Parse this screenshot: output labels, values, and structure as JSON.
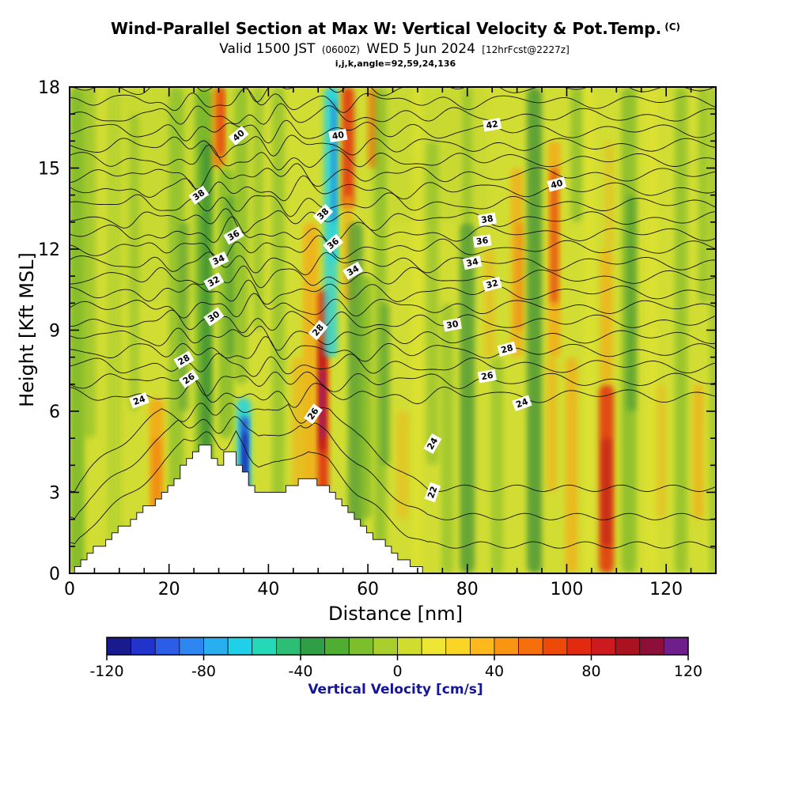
{
  "header": {
    "title_main": "Wind-Parallel Section at Max W: Vertical Velocity & Pot.Temp.",
    "title_unit": "(C)",
    "valid_pre": "Valid 1500 JST",
    "valid_z": "(0600Z)",
    "valid_date": "WED 5 Jun 2024",
    "valid_fcst": "[12hrFcst@2227z]",
    "params_line": "i,j,k,angle=92,59,24,136"
  },
  "axes": {
    "x": {
      "label": "Distance [nm]",
      "min": 0,
      "max": 130,
      "major_ticks": [
        0,
        20,
        40,
        60,
        80,
        100,
        120
      ],
      "minor_step": 5
    },
    "y": {
      "label": "Height [Kft MSL]",
      "min": 0,
      "max": 18,
      "major_ticks": [
        0,
        3,
        6,
        9,
        12,
        15,
        18
      ],
      "minor_step": 1
    }
  },
  "colorbar": {
    "label": "Vertical Velocity [cm/s]",
    "label_color": "#15159b",
    "min": -120,
    "max": 120,
    "step": 10,
    "ticks": [
      -120,
      -80,
      -40,
      0,
      40,
      80,
      120
    ],
    "colors": [
      "#1a1a8f",
      "#2233cc",
      "#2d5ce6",
      "#2f86f0",
      "#29aef0",
      "#1fd0e8",
      "#25d8b8",
      "#2ebd74",
      "#2f9e44",
      "#4fae32",
      "#7cbe2b",
      "#aace2b",
      "#d0dc2e",
      "#eee632",
      "#fad526",
      "#fcb81c",
      "#f99513",
      "#f5700c",
      "#ee4a07",
      "#e22a10",
      "#cc1a1e",
      "#ab1220",
      "#8c0f3a",
      "#6e1f8c"
    ]
  },
  "chart_data": {
    "type": "heatmap",
    "description": "Vertical cross-section along wind at max W: shaded vertical velocity (cm/s), potential temperature contours (C, interval 1), white terrain silhouette",
    "x_units": "nm",
    "y_units": "Kft MSL",
    "x_range": [
      0,
      130
    ],
    "y_range": [
      0,
      18
    ],
    "base_field_color": "#d2dd33",
    "palette": {
      "g": "#6fb32b",
      "dg": "#3b9038",
      "lg": "#a6cc2f",
      "o": "#f6a817",
      "ro": "#f07311",
      "r": "#e3330f",
      "dr": "#b5121b",
      "p": "#8c1b96",
      "c": "#2ad4de",
      "b": "#2353d8",
      "db": "#141e9e",
      "y": "#e6e52e"
    },
    "streaks": [
      [
        24,
        26,
        10,
        18,
        "lg",
        0.22
      ],
      [
        72,
        24,
        13,
        18,
        "lg",
        0.18
      ],
      [
        1.5,
        3,
        0,
        18,
        "g",
        0.75
      ],
      [
        4,
        2.5,
        5,
        18,
        "g",
        0.45
      ],
      [
        9,
        3,
        0,
        18,
        "lg",
        0.55
      ],
      [
        13,
        2,
        6,
        17,
        "g",
        0.4
      ],
      [
        17.5,
        3,
        1,
        6.5,
        "o",
        0.85
      ],
      [
        17.5,
        1.8,
        2,
        5,
        "ro",
        0.55
      ],
      [
        21.5,
        3,
        0,
        18,
        "g",
        0.55
      ],
      [
        23,
        2,
        6,
        13,
        "dg",
        0.45
      ],
      [
        27,
        3.5,
        0,
        18,
        "g",
        0.85
      ],
      [
        27.5,
        2,
        4,
        16,
        "dg",
        0.75
      ],
      [
        30,
        2.5,
        15,
        18,
        "ro",
        0.8
      ],
      [
        30.5,
        1.2,
        15.5,
        18,
        "r",
        0.7
      ],
      [
        31.5,
        3,
        5,
        15,
        "g",
        0.65
      ],
      [
        32.5,
        2,
        8,
        14,
        "dg",
        0.45
      ],
      [
        35,
        3,
        2.5,
        6.5,
        "c",
        0.9
      ],
      [
        35.2,
        1.6,
        3,
        5.8,
        "b",
        0.9
      ],
      [
        35.3,
        0.9,
        3.3,
        5.2,
        "db",
        0.85
      ],
      [
        34.5,
        2.5,
        7,
        18,
        "g",
        0.55
      ],
      [
        38,
        2,
        9,
        18,
        "g",
        0.45
      ],
      [
        42,
        2.5,
        0,
        18,
        "g",
        0.5
      ],
      [
        46,
        2.5,
        1,
        8,
        "o",
        0.55
      ],
      [
        48.5,
        3,
        0,
        13,
        "o",
        0.75
      ],
      [
        51,
        2.2,
        3,
        10.5,
        "r",
        0.9
      ],
      [
        50.8,
        1.3,
        4.5,
        8.5,
        "dr",
        0.85
      ],
      [
        50.9,
        0.8,
        5,
        7.5,
        "p",
        0.75
      ],
      [
        52.5,
        2.8,
        8,
        18,
        "c",
        0.8
      ],
      [
        53,
        1.6,
        11.5,
        18,
        "c",
        0.95
      ],
      [
        53.2,
        1,
        13,
        17.5,
        "b",
        0.5
      ],
      [
        56,
        2.5,
        13.5,
        18,
        "r",
        0.85
      ],
      [
        56,
        2,
        10,
        14,
        "o",
        0.65
      ],
      [
        57.5,
        3,
        0,
        13,
        "dg",
        0.65
      ],
      [
        59.5,
        2.5,
        2,
        11,
        "g",
        0.65
      ],
      [
        61,
        2,
        15,
        18,
        "ro",
        0.75
      ],
      [
        62.5,
        2.5,
        0,
        18,
        "g",
        0.55
      ],
      [
        63.5,
        2,
        4,
        10,
        "dg",
        0.45
      ],
      [
        67,
        2.5,
        2,
        6,
        "o",
        0.4
      ],
      [
        70,
        2,
        0,
        18,
        "y",
        0.5
      ],
      [
        73,
        2.5,
        4,
        16,
        "g",
        0.45
      ],
      [
        76,
        2.5,
        0,
        10,
        "g",
        0.45
      ],
      [
        80,
        3,
        0,
        13,
        "dg",
        0.7
      ],
      [
        80,
        2,
        13,
        18,
        "g",
        0.45
      ],
      [
        84.5,
        2,
        8,
        12,
        "o",
        0.45
      ],
      [
        86,
        2.5,
        0,
        8,
        "g",
        0.45
      ],
      [
        90,
        2.5,
        8,
        15,
        "o",
        0.7
      ],
      [
        90.5,
        1.5,
        9,
        13,
        "ro",
        0.45
      ],
      [
        93.5,
        3,
        0,
        18,
        "dg",
        0.75
      ],
      [
        97.5,
        2.5,
        8,
        16,
        "o",
        0.8
      ],
      [
        97.5,
        1.5,
        10,
        15,
        "r",
        0.65
      ],
      [
        97,
        2,
        3,
        8,
        "o",
        0.55
      ],
      [
        101,
        2.5,
        0,
        8,
        "o",
        0.65
      ],
      [
        102,
        2.5,
        13,
        18,
        "g",
        0.55
      ],
      [
        104.5,
        2,
        0,
        18,
        "y",
        0.5
      ],
      [
        108,
        3,
        0,
        7,
        "r",
        0.85
      ],
      [
        108,
        1.8,
        1,
        5,
        "dr",
        0.55
      ],
      [
        108,
        2.5,
        7,
        12,
        "o",
        0.65
      ],
      [
        108.5,
        2,
        12,
        16,
        "o",
        0.35
      ],
      [
        112.5,
        3,
        0,
        18,
        "g",
        0.65
      ],
      [
        113,
        2,
        6,
        14,
        "dg",
        0.5
      ],
      [
        117,
        2.5,
        0,
        18,
        "y",
        0.45
      ],
      [
        119,
        2,
        2,
        7,
        "o",
        0.4
      ],
      [
        123,
        2.5,
        0,
        18,
        "g",
        0.55
      ],
      [
        126.5,
        2,
        2,
        7,
        "o",
        0.65
      ],
      [
        127.5,
        2,
        10,
        18,
        "g",
        0.5
      ],
      [
        129.5,
        1.5,
        0,
        18,
        "g",
        0.45
      ]
    ],
    "terrain_profile": [
      [
        1,
        0
      ],
      [
        2,
        0.3
      ],
      [
        4,
        0.7
      ],
      [
        6,
        1.0
      ],
      [
        8,
        1.3
      ],
      [
        10,
        1.6
      ],
      [
        12,
        1.9
      ],
      [
        14,
        2.2
      ],
      [
        16,
        2.5
      ],
      [
        18,
        2.8
      ],
      [
        20,
        3.2
      ],
      [
        22,
        3.7
      ],
      [
        24,
        4.2
      ],
      [
        25,
        4.5
      ],
      [
        26,
        4.8
      ],
      [
        27,
        4.9
      ],
      [
        28,
        4.6
      ],
      [
        29,
        4.2
      ],
      [
        30,
        4.0
      ],
      [
        31,
        4.3
      ],
      [
        32,
        4.5
      ],
      [
        33,
        4.4
      ],
      [
        34,
        4.1
      ],
      [
        35,
        3.8
      ],
      [
        36,
        3.4
      ],
      [
        37,
        3.1
      ],
      [
        38,
        2.9
      ],
      [
        40,
        2.9
      ],
      [
        42,
        3.0
      ],
      [
        44,
        3.2
      ],
      [
        46,
        3.4
      ],
      [
        48,
        3.5
      ],
      [
        50,
        3.3
      ],
      [
        52,
        3.1
      ],
      [
        54,
        2.7
      ],
      [
        56,
        2.3
      ],
      [
        58,
        1.9
      ],
      [
        60,
        1.6
      ],
      [
        62,
        1.3
      ],
      [
        64,
        1.0
      ],
      [
        66,
        0.7
      ],
      [
        68,
        0.4
      ],
      [
        70,
        0.2
      ],
      [
        72,
        0
      ]
    ],
    "isotherms": {
      "min": 21,
      "max": 45,
      "interval": 1,
      "height_fit": {
        "slope": 0.544,
        "intercept": -6.46
      }
    },
    "contour_labels": [
      [
        40,
        34,
        16.2,
        -40
      ],
      [
        38,
        26,
        14,
        -35
      ],
      [
        36,
        33,
        12.5,
        -30
      ],
      [
        34,
        30,
        11.6,
        -25
      ],
      [
        32,
        29,
        10.8,
        -30
      ],
      [
        30,
        29,
        9.5,
        -35
      ],
      [
        28,
        23,
        7.9,
        -30
      ],
      [
        26,
        24,
        7.2,
        -35
      ],
      [
        24,
        14,
        6.4,
        -20
      ],
      [
        40,
        54,
        16.2,
        -10
      ],
      [
        38,
        51,
        13.3,
        -45
      ],
      [
        36,
        53,
        12.2,
        -40
      ],
      [
        34,
        57,
        11.2,
        -30
      ],
      [
        28,
        50,
        9,
        -50
      ],
      [
        26,
        49,
        5.9,
        -55
      ],
      [
        42,
        85,
        16.6,
        -10
      ],
      [
        40,
        98,
        14.4,
        -15
      ],
      [
        38,
        84,
        13.1,
        -10
      ],
      [
        36,
        83,
        12.3,
        -8
      ],
      [
        34,
        81,
        11.5,
        -12
      ],
      [
        32,
        85,
        10.7,
        -15
      ],
      [
        30,
        77,
        9.2,
        -10
      ],
      [
        28,
        88,
        8.3,
        -15
      ],
      [
        26,
        84,
        7.3,
        -10
      ],
      [
        24,
        91,
        6.3,
        -20
      ],
      [
        22,
        73,
        3,
        -70
      ],
      [
        24,
        73,
        4.8,
        -60
      ]
    ]
  }
}
